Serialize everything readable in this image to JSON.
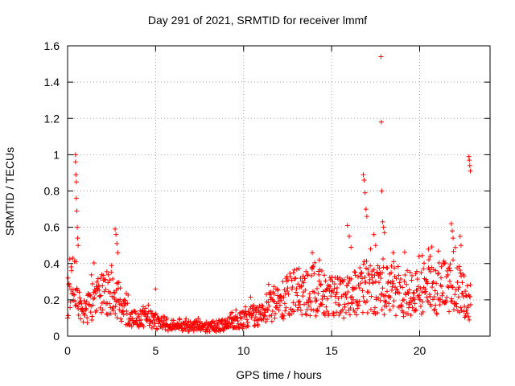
{
  "chart_data": {
    "type": "scatter",
    "title": "Day 291 of 2021, SRMTID for receiver lmmf",
    "xlabel": "GPS time / hours",
    "ylabel": "SRMTID / TECUs",
    "xlim": [
      0,
      24
    ],
    "ylim": [
      0,
      1.6
    ],
    "x_ticks": [
      0,
      5,
      10,
      15,
      20
    ],
    "x_tick_labels": [
      "0",
      "5",
      "10",
      "15",
      "20"
    ],
    "y_ticks": [
      0,
      0.2,
      0.4,
      0.6,
      0.8,
      1.0,
      1.2,
      1.4,
      1.6
    ],
    "y_tick_labels": [
      "0",
      "0.2",
      "0.4",
      "0.6",
      "0.8",
      "1",
      "1.2",
      "1.4",
      "1.6"
    ],
    "grid": true,
    "marker": "+",
    "marker_color": "#ff0000",
    "x_range_data": [
      0,
      22.9
    ],
    "baseline_profile": [
      {
        "x": 0.0,
        "y": 0.22
      },
      {
        "x": 0.3,
        "y": 0.3
      },
      {
        "x": 0.5,
        "y": 0.26
      },
      {
        "x": 0.8,
        "y": 0.12
      },
      {
        "x": 1.2,
        "y": 0.16
      },
      {
        "x": 1.6,
        "y": 0.22
      },
      {
        "x": 2.0,
        "y": 0.22
      },
      {
        "x": 2.5,
        "y": 0.25
      },
      {
        "x": 3.0,
        "y": 0.17
      },
      {
        "x": 3.5,
        "y": 0.11
      },
      {
        "x": 4.0,
        "y": 0.09
      },
      {
        "x": 4.5,
        "y": 0.11
      },
      {
        "x": 5.0,
        "y": 0.08
      },
      {
        "x": 6.0,
        "y": 0.06
      },
      {
        "x": 7.0,
        "y": 0.06
      },
      {
        "x": 8.0,
        "y": 0.05
      },
      {
        "x": 9.0,
        "y": 0.06
      },
      {
        "x": 9.5,
        "y": 0.08
      },
      {
        "x": 10.0,
        "y": 0.09
      },
      {
        "x": 11.0,
        "y": 0.13
      },
      {
        "x": 12.0,
        "y": 0.2
      },
      {
        "x": 13.0,
        "y": 0.24
      },
      {
        "x": 14.0,
        "y": 0.25
      },
      {
        "x": 15.0,
        "y": 0.21
      },
      {
        "x": 16.0,
        "y": 0.22
      },
      {
        "x": 17.0,
        "y": 0.28
      },
      {
        "x": 18.0,
        "y": 0.26
      },
      {
        "x": 19.0,
        "y": 0.24
      },
      {
        "x": 20.0,
        "y": 0.24
      },
      {
        "x": 21.0,
        "y": 0.26
      },
      {
        "x": 22.0,
        "y": 0.28
      },
      {
        "x": 22.5,
        "y": 0.22
      },
      {
        "x": 22.9,
        "y": 0.15
      }
    ],
    "notable_points": [
      {
        "x": 0.45,
        "y": 1.0
      },
      {
        "x": 0.45,
        "y": 0.96
      },
      {
        "x": 0.47,
        "y": 0.89
      },
      {
        "x": 0.5,
        "y": 0.85
      },
      {
        "x": 0.5,
        "y": 0.76
      },
      {
        "x": 0.52,
        "y": 0.69
      },
      {
        "x": 0.55,
        "y": 0.6
      },
      {
        "x": 0.57,
        "y": 0.54
      },
      {
        "x": 0.6,
        "y": 0.5
      },
      {
        "x": 2.7,
        "y": 0.59
      },
      {
        "x": 2.75,
        "y": 0.56
      },
      {
        "x": 2.8,
        "y": 0.51
      },
      {
        "x": 2.85,
        "y": 0.46
      },
      {
        "x": 5.0,
        "y": 0.26
      },
      {
        "x": 13.9,
        "y": 0.46
      },
      {
        "x": 14.3,
        "y": 0.42
      },
      {
        "x": 15.9,
        "y": 0.61
      },
      {
        "x": 16.0,
        "y": 0.55
      },
      {
        "x": 16.1,
        "y": 0.49
      },
      {
        "x": 16.8,
        "y": 0.89
      },
      {
        "x": 16.85,
        "y": 0.86
      },
      {
        "x": 16.9,
        "y": 0.79
      },
      {
        "x": 16.95,
        "y": 0.7
      },
      {
        "x": 17.0,
        "y": 0.66
      },
      {
        "x": 17.4,
        "y": 0.56
      },
      {
        "x": 17.5,
        "y": 0.5
      },
      {
        "x": 17.8,
        "y": 1.54
      },
      {
        "x": 17.82,
        "y": 1.18
      },
      {
        "x": 17.85,
        "y": 0.8
      },
      {
        "x": 17.9,
        "y": 0.63
      },
      {
        "x": 17.95,
        "y": 0.6
      },
      {
        "x": 18.0,
        "y": 0.57
      },
      {
        "x": 18.5,
        "y": 0.46
      },
      {
        "x": 20.5,
        "y": 0.48
      },
      {
        "x": 20.6,
        "y": 0.44
      },
      {
        "x": 21.8,
        "y": 0.62
      },
      {
        "x": 21.85,
        "y": 0.58
      },
      {
        "x": 21.9,
        "y": 0.54
      },
      {
        "x": 22.3,
        "y": 0.55
      },
      {
        "x": 22.35,
        "y": 0.5
      },
      {
        "x": 22.8,
        "y": 0.99
      },
      {
        "x": 22.82,
        "y": 0.97
      },
      {
        "x": 22.85,
        "y": 0.94
      },
      {
        "x": 22.88,
        "y": 0.91
      }
    ]
  }
}
